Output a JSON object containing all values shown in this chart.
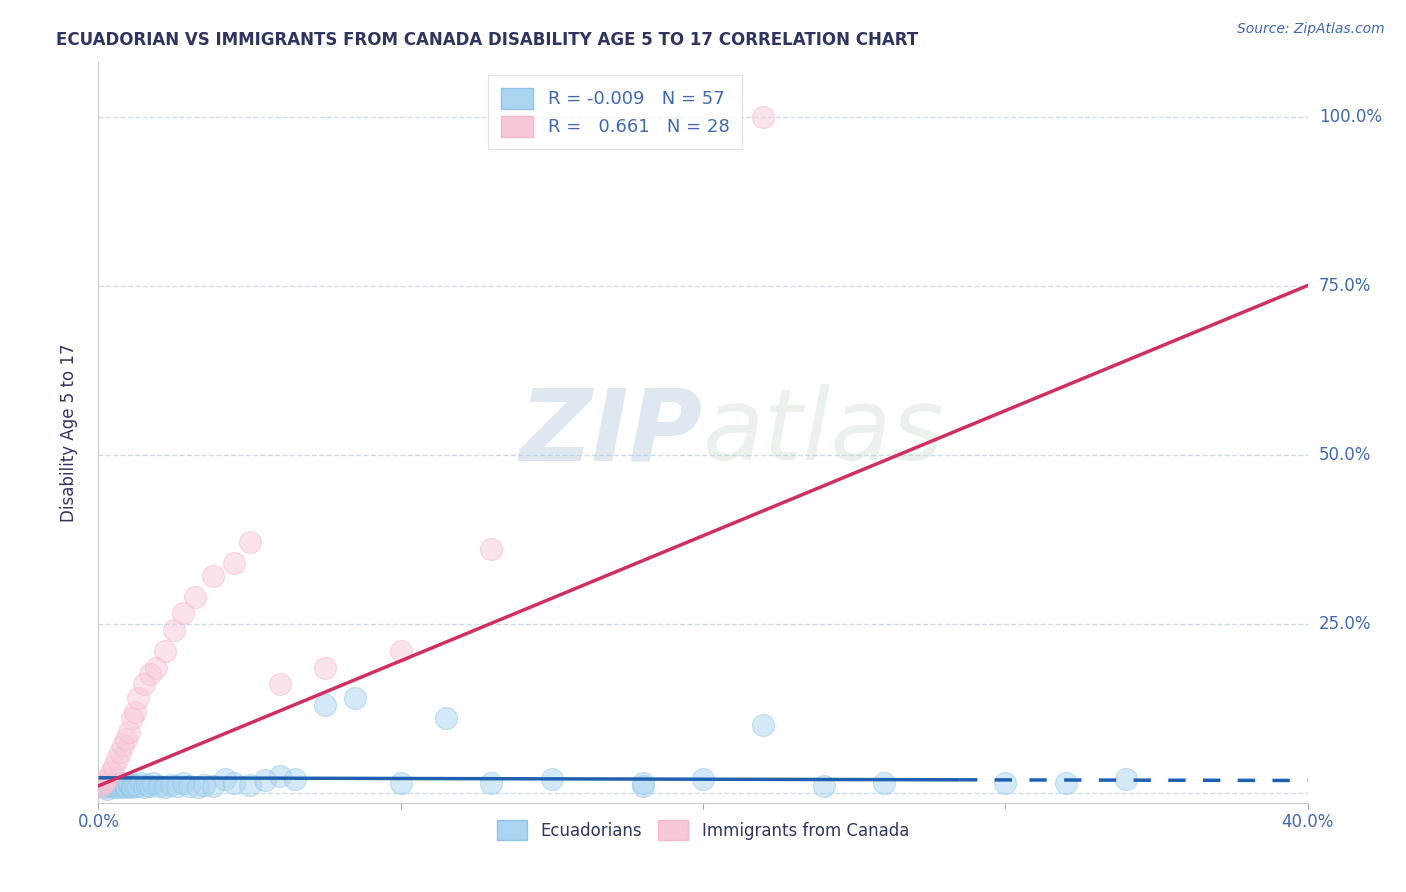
{
  "title": "ECUADORIAN VS IMMIGRANTS FROM CANADA DISABILITY AGE 5 TO 17 CORRELATION CHART",
  "source_text": "Source: ZipAtlas.com",
  "ylabel": "Disability Age 5 to 17",
  "watermark_zip": "ZIP",
  "watermark_atlas": "atlas",
  "xmin": 0.0,
  "xmax": 0.4,
  "ymin": -0.015,
  "ymax": 1.08,
  "yticks": [
    0.0,
    0.25,
    0.5,
    0.75,
    1.0
  ],
  "ytick_labels": [
    "",
    "25.0%",
    "50.0%",
    "75.0%",
    "100.0%"
  ],
  "xticks": [
    0.0,
    0.1,
    0.2,
    0.3,
    0.4
  ],
  "xtick_labels": [
    "0.0%",
    "",
    "",
    "",
    "40.0%"
  ],
  "legend_line1": "R = -0.009   N = 57",
  "legend_line2": "R =   0.661   N = 28",
  "color_blue": "#8fc4e8",
  "color_blue_fill": "#aad4f0",
  "color_blue_line": "#2060b0",
  "color_pink": "#f5b8c8",
  "color_pink_fill": "#f8c8d8",
  "color_pink_line": "#d03060",
  "color_accent": "#4169b0",
  "title_color": "#303560",
  "background_color": "#ffffff",
  "grid_color": "#c8d8e8",
  "ecuadorians_x": [
    0.001,
    0.002,
    0.003,
    0.003,
    0.004,
    0.004,
    0.005,
    0.005,
    0.006,
    0.006,
    0.007,
    0.007,
    0.008,
    0.008,
    0.009,
    0.009,
    0.01,
    0.01,
    0.011,
    0.011,
    0.012,
    0.013,
    0.014,
    0.015,
    0.016,
    0.017,
    0.018,
    0.02,
    0.022,
    0.024,
    0.026,
    0.028,
    0.03,
    0.033,
    0.035,
    0.038,
    0.042,
    0.045,
    0.05,
    0.055,
    0.06,
    0.065,
    0.075,
    0.085,
    0.1,
    0.115,
    0.13,
    0.15,
    0.18,
    0.22,
    0.26,
    0.3,
    0.34,
    0.18,
    0.2,
    0.24,
    0.32
  ],
  "ecuadorians_y": [
    0.01,
    0.008,
    0.012,
    0.005,
    0.01,
    0.015,
    0.008,
    0.012,
    0.01,
    0.015,
    0.008,
    0.012,
    0.01,
    0.015,
    0.01,
    0.008,
    0.012,
    0.015,
    0.01,
    0.008,
    0.012,
    0.01,
    0.015,
    0.008,
    0.012,
    0.01,
    0.015,
    0.01,
    0.008,
    0.012,
    0.01,
    0.015,
    0.01,
    0.008,
    0.012,
    0.01,
    0.02,
    0.015,
    0.012,
    0.018,
    0.025,
    0.02,
    0.13,
    0.14,
    0.015,
    0.11,
    0.015,
    0.02,
    0.01,
    0.1,
    0.015,
    0.015,
    0.02,
    0.015,
    0.02,
    0.01,
    0.015
  ],
  "canada_x": [
    0.001,
    0.002,
    0.003,
    0.004,
    0.005,
    0.006,
    0.007,
    0.008,
    0.009,
    0.01,
    0.011,
    0.012,
    0.013,
    0.015,
    0.017,
    0.019,
    0.022,
    0.025,
    0.028,
    0.032,
    0.038,
    0.045,
    0.05,
    0.06,
    0.075,
    0.1,
    0.13,
    0.22
  ],
  "canada_y": [
    0.01,
    0.015,
    0.02,
    0.03,
    0.04,
    0.05,
    0.06,
    0.07,
    0.08,
    0.09,
    0.11,
    0.12,
    0.14,
    0.16,
    0.175,
    0.185,
    0.21,
    0.24,
    0.265,
    0.29,
    0.32,
    0.34,
    0.37,
    0.16,
    0.185,
    0.21,
    0.36,
    1.0
  ],
  "blue_line_x0": 0.0,
  "blue_line_y0": 0.022,
  "blue_line_x1": 0.285,
  "blue_line_y1": 0.019,
  "blue_line_x2": 0.4,
  "blue_line_y2": 0.018,
  "pink_line_x0": 0.0,
  "pink_line_y0": 0.01,
  "pink_line_x1": 0.4,
  "pink_line_y1": 0.75
}
